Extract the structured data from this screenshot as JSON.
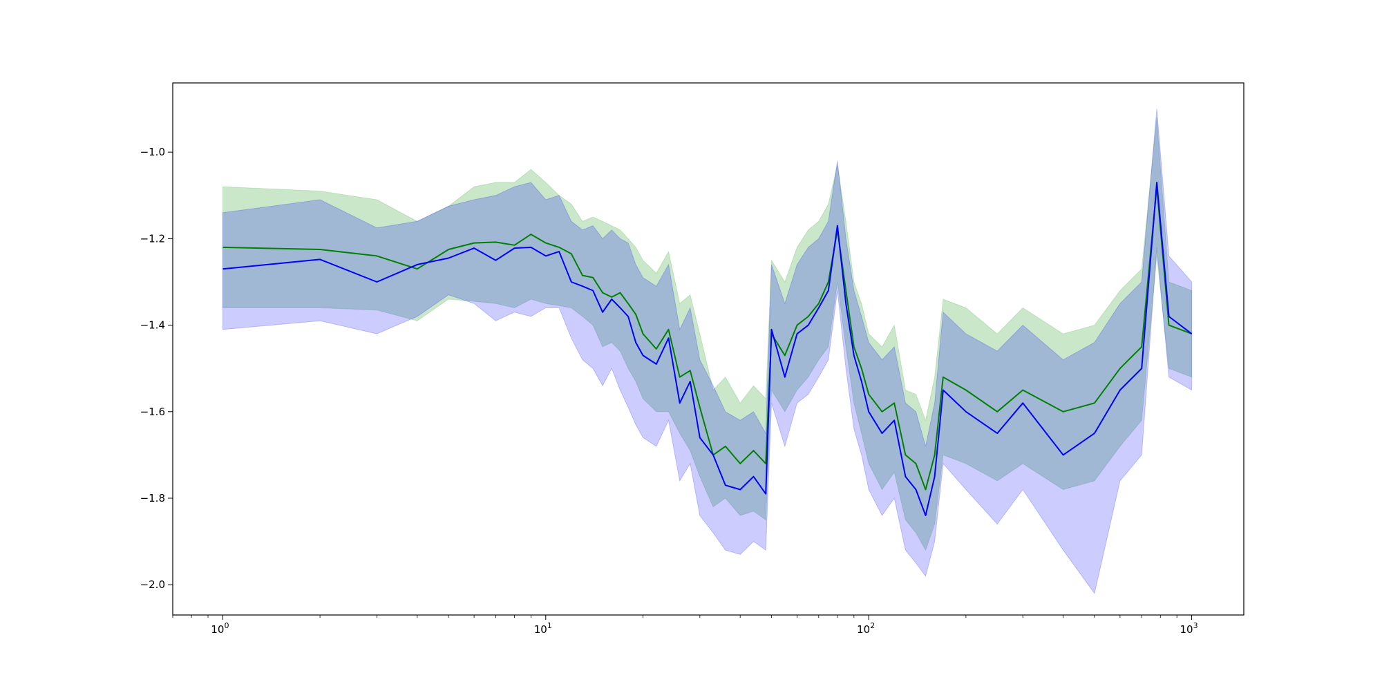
{
  "chart_data": {
    "type": "line",
    "title": "",
    "xlabel": "",
    "ylabel": "",
    "xscale": "log",
    "xlim": [
      0.7,
      1450
    ],
    "ylim": [
      -2.07,
      -0.84
    ],
    "grid": false,
    "legend": "none",
    "x_ticks": [
      {
        "base": "10",
        "exp": "0",
        "value": 1
      },
      {
        "base": "10",
        "exp": "1",
        "value": 10
      },
      {
        "base": "10",
        "exp": "2",
        "value": 100
      },
      {
        "base": "10",
        "exp": "3",
        "value": 1000
      }
    ],
    "y_ticks": [
      {
        "label": "−2.0",
        "value": -2.0
      },
      {
        "label": "−1.8",
        "value": -1.8
      },
      {
        "label": "−1.6",
        "value": -1.6
      },
      {
        "label": "−1.4",
        "value": -1.4
      },
      {
        "label": "−1.2",
        "value": -1.2
      },
      {
        "label": "−1.0",
        "value": -1.0
      }
    ],
    "series": [
      {
        "color": "#008000",
        "band_color": "#2ca02c",
        "x": [
          1,
          2,
          3,
          4,
          5,
          6,
          7,
          8,
          9,
          10,
          11,
          12,
          13,
          14,
          15,
          16,
          17,
          18,
          19,
          20,
          22,
          24,
          26,
          28,
          30,
          33,
          36,
          40,
          44,
          48,
          50,
          55,
          60,
          65,
          70,
          75,
          80,
          85,
          90,
          95,
          100,
          110,
          120,
          130,
          140,
          150,
          160,
          170,
          200,
          250,
          300,
          400,
          500,
          600,
          700,
          780,
          850,
          1000
        ],
        "y": [
          -1.22,
          -1.225,
          -1.24,
          -1.27,
          -1.225,
          -1.21,
          -1.208,
          -1.215,
          -1.19,
          -1.21,
          -1.22,
          -1.235,
          -1.285,
          -1.29,
          -1.325,
          -1.335,
          -1.325,
          -1.35,
          -1.375,
          -1.42,
          -1.455,
          -1.41,
          -1.52,
          -1.505,
          -1.59,
          -1.7,
          -1.68,
          -1.72,
          -1.69,
          -1.72,
          -1.42,
          -1.47,
          -1.4,
          -1.38,
          -1.35,
          -1.3,
          -1.18,
          -1.32,
          -1.45,
          -1.5,
          -1.56,
          -1.6,
          -1.58,
          -1.7,
          -1.72,
          -1.78,
          -1.7,
          -1.52,
          -1.55,
          -1.6,
          -1.55,
          -1.6,
          -1.58,
          -1.5,
          -1.45,
          -1.08,
          -1.4,
          -1.42
        ],
        "lower": [
          -1.36,
          -1.36,
          -1.365,
          -1.39,
          -1.34,
          -1.345,
          -1.35,
          -1.36,
          -1.34,
          -1.35,
          -1.355,
          -1.36,
          -1.38,
          -1.4,
          -1.45,
          -1.44,
          -1.46,
          -1.5,
          -1.53,
          -1.57,
          -1.6,
          -1.6,
          -1.65,
          -1.69,
          -1.75,
          -1.82,
          -1.8,
          -1.84,
          -1.83,
          -1.85,
          -1.55,
          -1.6,
          -1.55,
          -1.52,
          -1.48,
          -1.45,
          -1.3,
          -1.45,
          -1.58,
          -1.65,
          -1.72,
          -1.78,
          -1.74,
          -1.85,
          -1.88,
          -1.92,
          -1.86,
          -1.7,
          -1.72,
          -1.76,
          -1.72,
          -1.78,
          -1.76,
          -1.68,
          -1.62,
          -1.24,
          -1.5,
          -1.52
        ],
        "upper": [
          -1.08,
          -1.09,
          -1.11,
          -1.16,
          -1.125,
          -1.08,
          -1.07,
          -1.07,
          -1.04,
          -1.07,
          -1.1,
          -1.12,
          -1.16,
          -1.15,
          -1.16,
          -1.17,
          -1.18,
          -1.2,
          -1.22,
          -1.25,
          -1.28,
          -1.23,
          -1.35,
          -1.33,
          -1.42,
          -1.55,
          -1.52,
          -1.58,
          -1.54,
          -1.57,
          -1.25,
          -1.3,
          -1.22,
          -1.18,
          -1.16,
          -1.12,
          -1.03,
          -1.16,
          -1.3,
          -1.35,
          -1.42,
          -1.45,
          -1.4,
          -1.55,
          -1.56,
          -1.62,
          -1.52,
          -1.34,
          -1.36,
          -1.42,
          -1.36,
          -1.42,
          -1.4,
          -1.32,
          -1.27,
          -0.92,
          -1.3,
          -1.32
        ]
      },
      {
        "color": "#0000ff",
        "band_color": "#0000ff",
        "x": [
          1,
          2,
          3,
          4,
          5,
          6,
          7,
          8,
          9,
          10,
          11,
          12,
          13,
          14,
          15,
          16,
          17,
          18,
          19,
          20,
          22,
          24,
          26,
          28,
          30,
          33,
          36,
          40,
          44,
          48,
          50,
          55,
          60,
          65,
          70,
          75,
          80,
          85,
          90,
          95,
          100,
          110,
          120,
          130,
          140,
          150,
          160,
          170,
          200,
          250,
          300,
          400,
          500,
          600,
          700,
          780,
          850,
          1000
        ],
        "y": [
          -1.27,
          -1.248,
          -1.3,
          -1.26,
          -1.245,
          -1.222,
          -1.25,
          -1.222,
          -1.22,
          -1.24,
          -1.23,
          -1.3,
          -1.31,
          -1.32,
          -1.37,
          -1.34,
          -1.36,
          -1.38,
          -1.44,
          -1.47,
          -1.49,
          -1.43,
          -1.58,
          -1.53,
          -1.66,
          -1.7,
          -1.77,
          -1.78,
          -1.75,
          -1.79,
          -1.41,
          -1.52,
          -1.42,
          -1.4,
          -1.36,
          -1.32,
          -1.17,
          -1.35,
          -1.47,
          -1.53,
          -1.6,
          -1.65,
          -1.62,
          -1.75,
          -1.78,
          -1.84,
          -1.75,
          -1.55,
          -1.6,
          -1.65,
          -1.58,
          -1.7,
          -1.65,
          -1.55,
          -1.5,
          -1.07,
          -1.38,
          -1.42
        ],
        "lower": [
          -1.41,
          -1.39,
          -1.42,
          -1.38,
          -1.33,
          -1.35,
          -1.39,
          -1.37,
          -1.38,
          -1.36,
          -1.36,
          -1.43,
          -1.48,
          -1.5,
          -1.54,
          -1.5,
          -1.55,
          -1.59,
          -1.63,
          -1.66,
          -1.68,
          -1.62,
          -1.76,
          -1.72,
          -1.84,
          -1.88,
          -1.92,
          -1.93,
          -1.9,
          -1.92,
          -1.58,
          -1.68,
          -1.58,
          -1.56,
          -1.52,
          -1.48,
          -1.32,
          -1.5,
          -1.64,
          -1.7,
          -1.78,
          -1.84,
          -1.8,
          -1.92,
          -1.95,
          -1.98,
          -1.9,
          -1.72,
          -1.78,
          -1.86,
          -1.78,
          -1.92,
          -2.02,
          -1.76,
          -1.7,
          -1.22,
          -1.52,
          -1.55
        ],
        "upper": [
          -1.14,
          -1.11,
          -1.175,
          -1.16,
          -1.125,
          -1.11,
          -1.1,
          -1.08,
          -1.07,
          -1.11,
          -1.1,
          -1.16,
          -1.18,
          -1.17,
          -1.2,
          -1.18,
          -1.2,
          -1.21,
          -1.26,
          -1.29,
          -1.31,
          -1.26,
          -1.41,
          -1.36,
          -1.48,
          -1.54,
          -1.6,
          -1.62,
          -1.6,
          -1.65,
          -1.26,
          -1.35,
          -1.26,
          -1.22,
          -1.2,
          -1.16,
          -1.02,
          -1.2,
          -1.32,
          -1.38,
          -1.44,
          -1.48,
          -1.45,
          -1.58,
          -1.6,
          -1.68,
          -1.58,
          -1.37,
          -1.42,
          -1.46,
          -1.4,
          -1.48,
          -1.44,
          -1.35,
          -1.3,
          -0.9,
          -1.24,
          -1.3
        ]
      }
    ]
  }
}
